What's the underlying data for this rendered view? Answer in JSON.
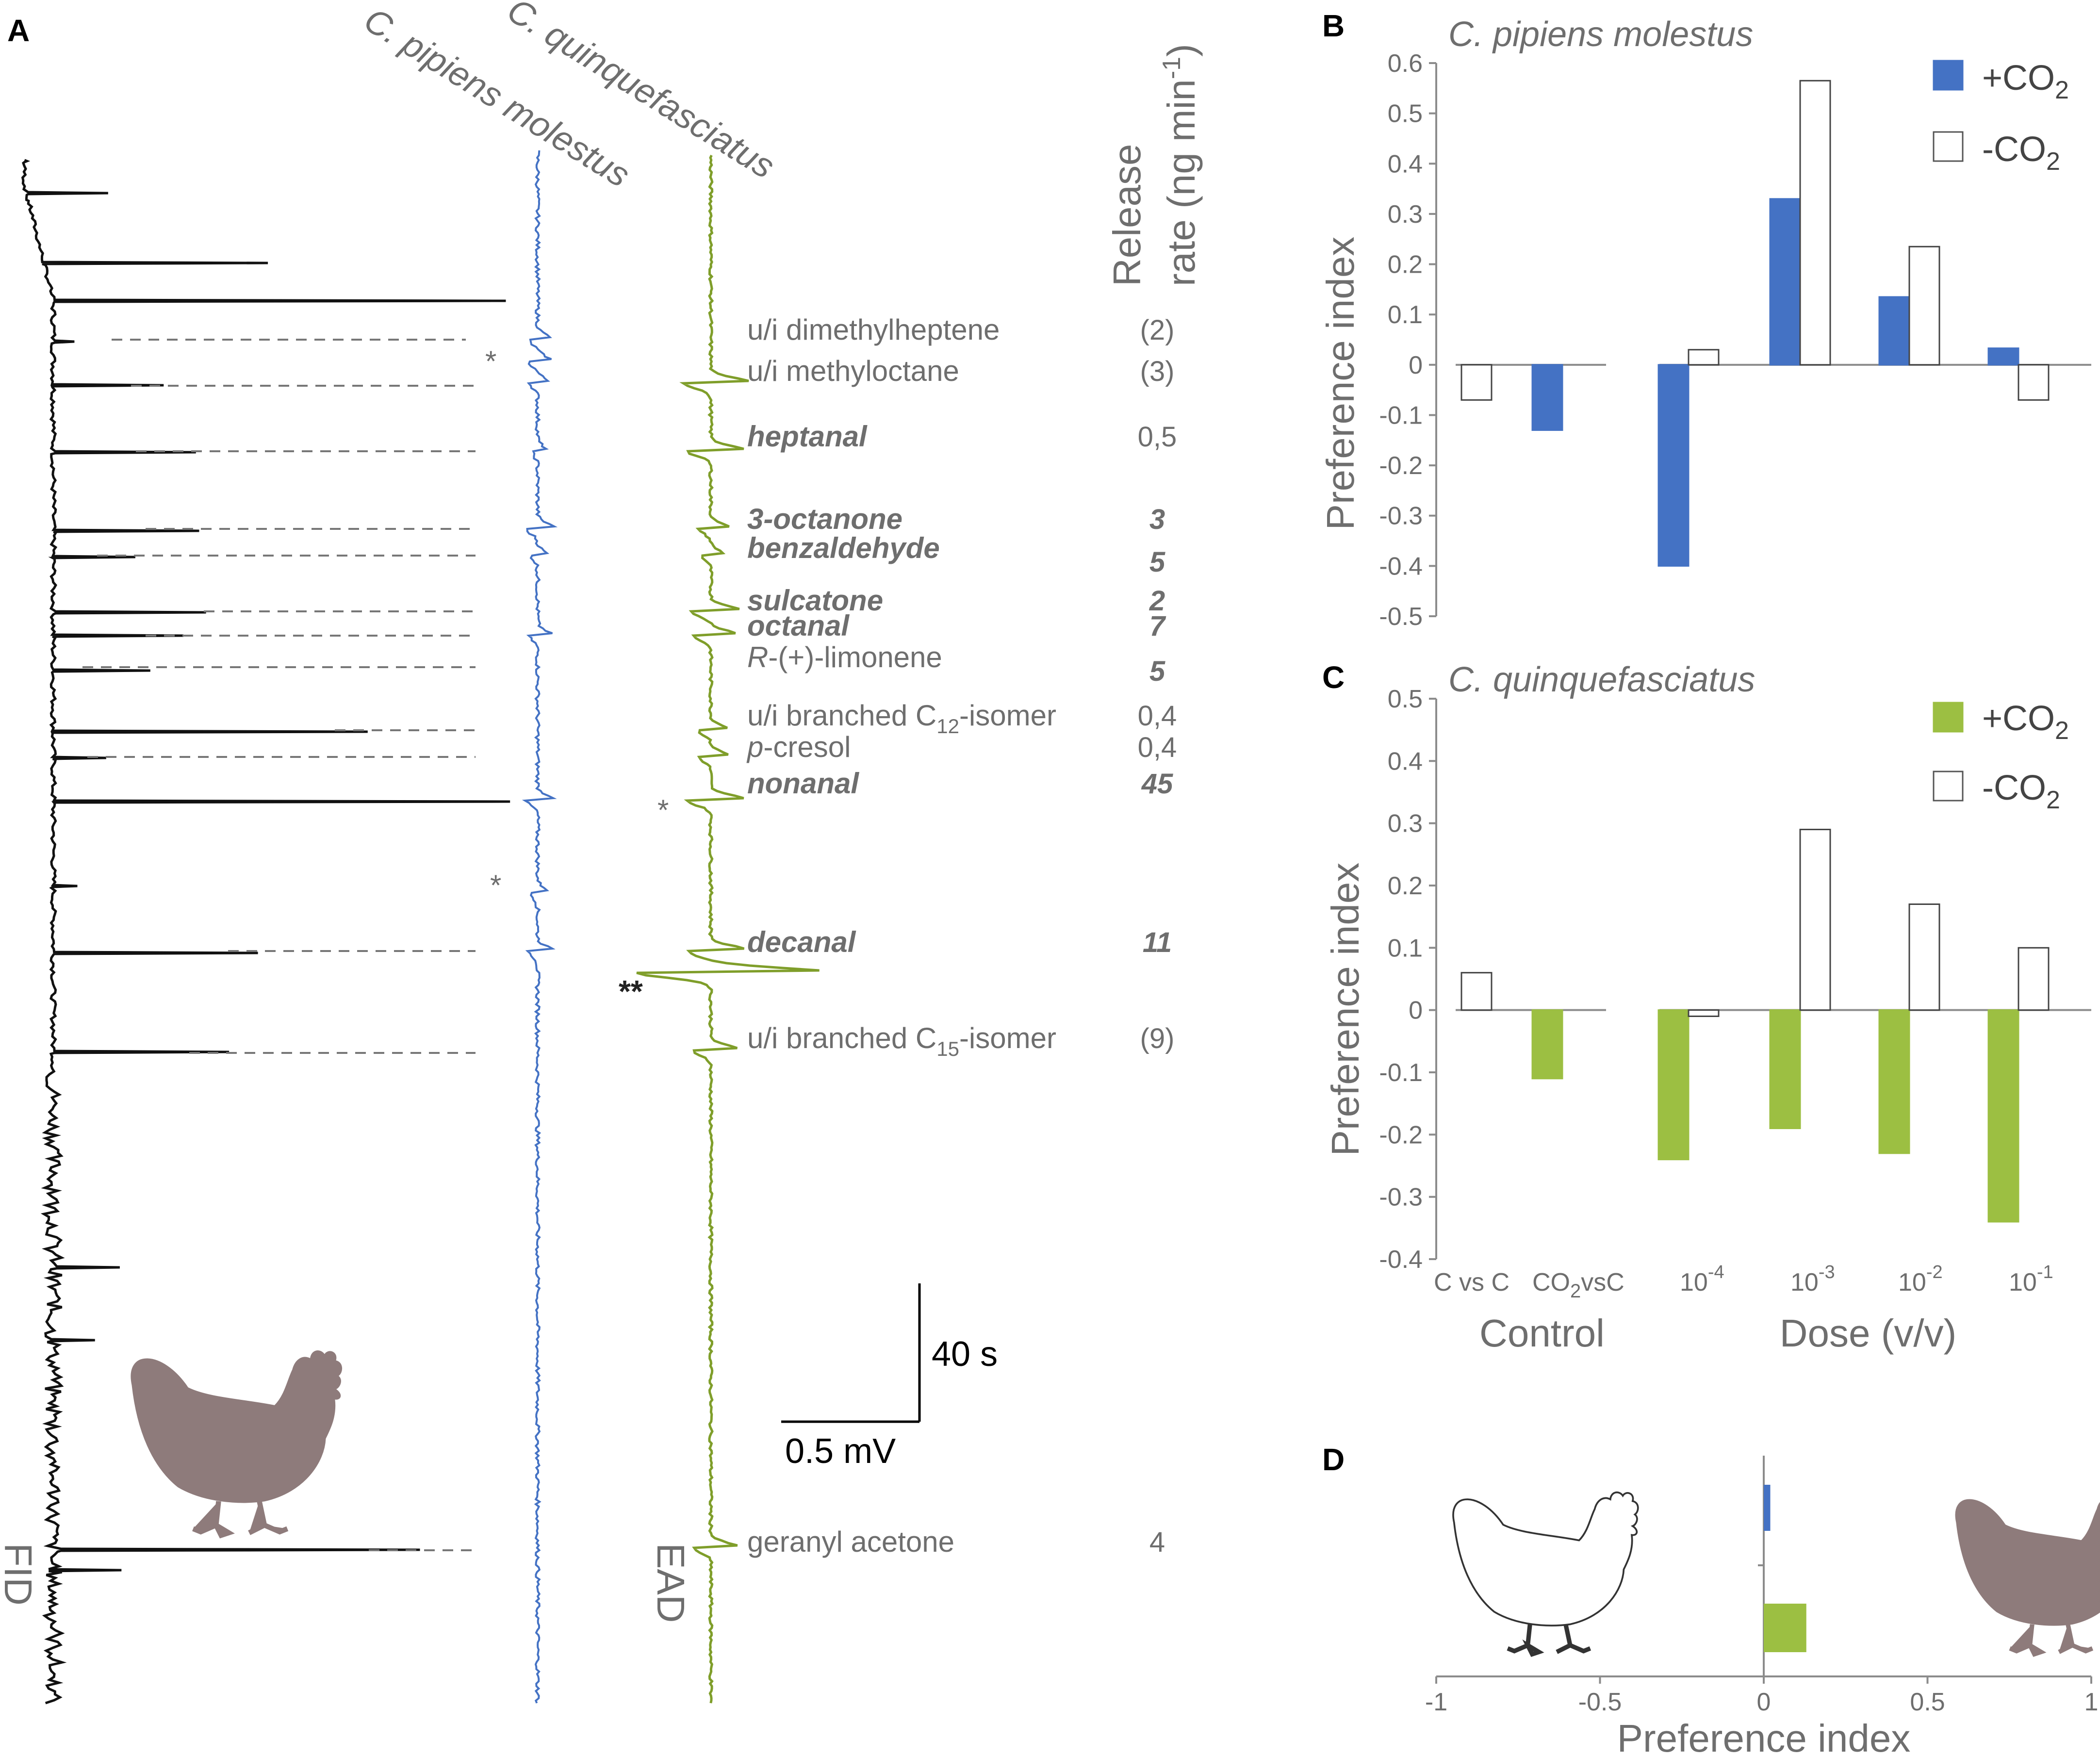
{
  "panels": {
    "a": "A",
    "b": "B",
    "c": "C",
    "d": "D"
  },
  "panel_a": {
    "trace_labels": {
      "pipiens": "C. pipiens molestus",
      "quinque": "C. quinquefasciatus",
      "fid": "FID",
      "ead": "EAD"
    },
    "release_header": [
      "Release",
      "rate (ng min",
      "-1",
      ")"
    ],
    "compounds": [
      {
        "name": "u/i dimethylheptene",
        "rate": "(2)",
        "bold": false
      },
      {
        "name": "u/i methyloctane",
        "rate": "(3)",
        "bold": false
      },
      {
        "name": "heptanal",
        "rate": "0,5",
        "bold": true,
        "rate_bold": false
      },
      {
        "name": "3-octanone",
        "rate": "3",
        "bold": true,
        "rate_bold": true
      },
      {
        "name": "benzaldehyde",
        "rate": "5",
        "bold": true,
        "rate_bold": true
      },
      {
        "name": "sulcatone",
        "rate": "2",
        "bold": true,
        "rate_bold": true
      },
      {
        "name": "octanal",
        "rate": "7",
        "bold": true,
        "rate_bold": true
      },
      {
        "name_prefix": "R",
        "name": "-(+)-limonene",
        "rate": "5",
        "bold": false,
        "rate_bold": true
      },
      {
        "name": "u/i branched C",
        "sub": "12",
        "suffix": "-isomer",
        "rate": "0,4",
        "bold": false
      },
      {
        "name_prefix": "p",
        "name": "-cresol",
        "rate": "0,4",
        "bold": false
      },
      {
        "name": "nonanal",
        "rate": "45",
        "bold": true,
        "rate_bold": true
      },
      {
        "name": "decanal",
        "rate": "11",
        "bold": true,
        "rate_bold": true
      },
      {
        "name": "u/i branched C",
        "sub": "15",
        "suffix": "-isomer",
        "rate": "(9)",
        "bold": false
      },
      {
        "name": "geranyl acetone",
        "rate": "4",
        "bold": false
      }
    ],
    "markers": {
      "single": "*",
      "double": "**"
    },
    "scale": {
      "time": "40 s",
      "voltage": "0.5 mV"
    }
  },
  "legend": {
    "plus": "+CO",
    "minus": "-CO",
    "sub": "2"
  },
  "colors": {
    "blue": "#4472c4",
    "green": "#9cbf42",
    "fid": "#111111",
    "axis": "#8c8c8c",
    "hen": "#8e7b7b"
  },
  "chart_data": [
    {
      "id": "B",
      "type": "bar",
      "title": "C. pipiens molestus",
      "ylabel": "Preference index",
      "ylim": [
        -0.5,
        0.6
      ],
      "yticks": [
        "0.6",
        "0.5",
        "0.4",
        "0.3",
        "0.2",
        "0.1",
        "0",
        "-0.1",
        "-0.2",
        "-0.3",
        "-0.4",
        "-0.5"
      ],
      "groups": [
        "C vs C",
        "CO2vsC",
        "10^-4",
        "10^-3",
        "10^-2",
        "10^-1"
      ],
      "series": [
        {
          "name": "+CO2",
          "color": "#4472c4",
          "values": [
            null,
            -0.13,
            -0.4,
            0.33,
            0.135,
            0.033
          ]
        },
        {
          "name": "-CO2",
          "color": "#ffffff",
          "values": [
            -0.07,
            null,
            0.03,
            0.565,
            0.235,
            -0.07
          ]
        }
      ]
    },
    {
      "id": "C",
      "type": "bar",
      "title": "C. quinquefasciatus",
      "ylabel": "Preference index",
      "ylim": [
        -0.4,
        0.5
      ],
      "yticks": [
        "0.5",
        "0.4",
        "0.3",
        "0.2",
        "0.1",
        "0",
        "-0.1",
        "-0.2",
        "-0.3",
        "-0.4"
      ],
      "groups": [
        "C vs C",
        "CO2vsC",
        "10^-4",
        "10^-3",
        "10^-2",
        "10^-1"
      ],
      "series": [
        {
          "name": "+CO2",
          "color": "#9cbf42",
          "values": [
            null,
            -0.11,
            -0.24,
            -0.19,
            -0.23,
            -0.34
          ]
        },
        {
          "name": "-CO2",
          "color": "#ffffff",
          "values": [
            0.06,
            null,
            -0.01,
            0.29,
            0.17,
            0.1
          ]
        }
      ],
      "xlabel_groups": [
        "Control",
        "Dose (v/v)"
      ],
      "group_labels": {
        "cvc": "C vs C",
        "co2_main": "CO",
        "co2_sub": "2",
        "co2_tail": "vsC",
        "doses": [
          {
            "base": "10",
            "exp": "-4"
          },
          {
            "base": "10",
            "exp": "-3"
          },
          {
            "base": "10",
            "exp": "-2"
          },
          {
            "base": "10",
            "exp": "-1"
          }
        ]
      }
    },
    {
      "id": "D",
      "type": "bar",
      "orientation": "horizontal",
      "xlabel": "Preference index",
      "xlim": [
        -1,
        1
      ],
      "xticks": [
        "-1",
        "-0.5",
        "0",
        "0.5",
        "1"
      ],
      "series": [
        {
          "name": "C. pipiens molestus",
          "color": "#4472c4",
          "value": 0.02
        },
        {
          "name": "C. quinquefasciatus",
          "color": "#9cbf42",
          "value": 0.13
        }
      ]
    }
  ]
}
